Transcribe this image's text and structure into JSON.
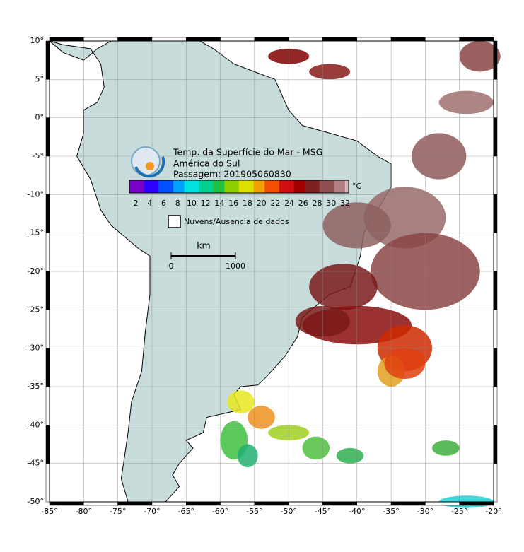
{
  "header": {
    "lines": [
      "Temp. da Superfície do Mar - MSG",
      "América do Sul",
      "Passagem: 201905060830"
    ]
  },
  "colorbar": {
    "ticks": [
      2,
      4,
      6,
      8,
      10,
      12,
      14,
      16,
      18,
      20,
      22,
      24,
      26,
      28,
      30,
      32
    ],
    "unit": "°C"
  },
  "legend": {
    "label": "Nuvens/Ausencia de dados"
  },
  "scale_bar": {
    "unit": "km",
    "labels": [
      "0",
      "1000"
    ]
  },
  "axes": {
    "lon_labels": [
      "-85°",
      "-80°",
      "-75°",
      "-70°",
      "-65°",
      "-60°",
      "-55°",
      "-50°",
      "-45°",
      "-40°",
      "-35°",
      "-30°",
      "-25°",
      "-20°"
    ],
    "lat_labels": [
      "10°",
      "5°",
      "0°",
      "-5°",
      "-10°",
      "-15°",
      "-20°",
      "-25°",
      "-30°",
      "-35°",
      "-40°",
      "-45°",
      "-50°"
    ]
  }
}
